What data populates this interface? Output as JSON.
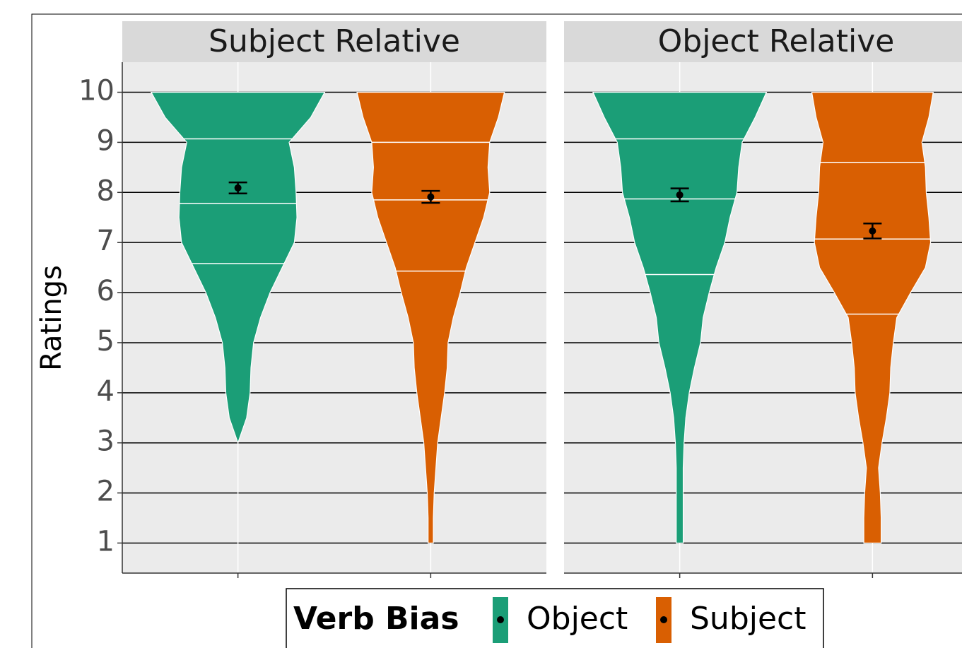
{
  "chart_data": {
    "type": "violin",
    "y_label": "Ratings",
    "ylim": [
      0.4,
      10.6
    ],
    "yticks": [
      1,
      2,
      3,
      4,
      5,
      6,
      7,
      8,
      9,
      10
    ],
    "grid": true,
    "legend_title": "Verb Bias",
    "series": [
      {
        "name": "Object",
        "color": "#1b9e77"
      },
      {
        "name": "Subject",
        "color": "#d95f02"
      }
    ],
    "density_y": [
      1,
      1.5,
      2,
      2.5,
      3,
      3.5,
      4,
      4.5,
      5,
      5.5,
      6,
      6.5,
      7,
      7.5,
      8,
      8.5,
      9,
      9.5,
      10
    ],
    "facets": [
      {
        "title": "Subject Relative",
        "violins": [
          {
            "widths": [
              null,
              null,
              null,
              null,
              0,
              0.1,
              0.14,
              0.15,
              0.18,
              0.26,
              0.37,
              0.51,
              0.65,
              0.68,
              0.67,
              0.65,
              0.59,
              0.84,
              1.0
            ],
            "quantiles": [
              6.58,
              7.78,
              9.07
            ],
            "mean": 8.09,
            "error": 0.11
          },
          {
            "widths": [
              0.03,
              0.03,
              0.04,
              0.06,
              0.08,
              0.12,
              0.16,
              0.19,
              0.2,
              0.26,
              0.34,
              0.41,
              0.51,
              0.61,
              0.68,
              0.66,
              0.68,
              0.78,
              0.85
            ],
            "quantiles": [
              6.43,
              7.85,
              9.0
            ],
            "mean": 7.91,
            "error": 0.12
          }
        ]
      },
      {
        "title": "Object Relative",
        "violins": [
          {
            "widths": [
              0.04,
              0.04,
              0.04,
              0.04,
              0.05,
              0.07,
              0.11,
              0.17,
              0.24,
              0.27,
              0.34,
              0.42,
              0.52,
              0.58,
              0.66,
              0.68,
              0.72,
              0.87,
              1.0
            ],
            "quantiles": [
              6.36,
              7.87,
              9.07
            ],
            "mean": 7.95,
            "error": 0.13
          },
          {
            "widths": [
              0.1,
              0.1,
              0.09,
              0.07,
              0.11,
              0.16,
              0.2,
              0.21,
              0.24,
              0.28,
              0.44,
              0.61,
              0.67,
              0.65,
              0.62,
              0.61,
              0.57,
              0.65,
              0.7
            ],
            "quantiles": [
              5.57,
              7.07,
              8.6
            ],
            "mean": 7.23,
            "error": 0.15
          }
        ]
      }
    ]
  }
}
